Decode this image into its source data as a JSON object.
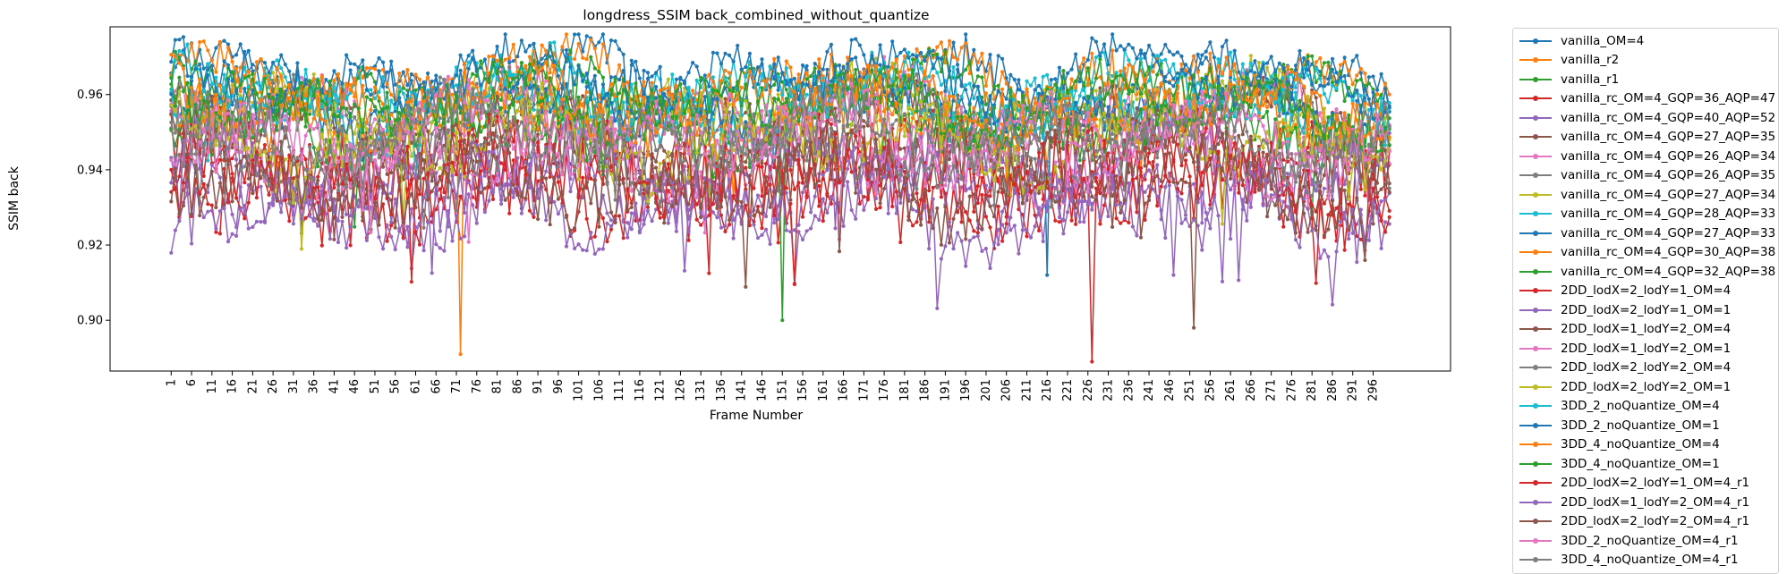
{
  "chart_data": {
    "type": "line",
    "title": "longdress_SSIM back_combined_without_quantize",
    "xlabel": "Frame Number",
    "ylabel": "SSIM back",
    "x_range": [
      1,
      300
    ],
    "ylim": [
      0.8865,
      0.978
    ],
    "y_ticks": [
      0.9,
      0.92,
      0.94,
      0.96
    ],
    "x_ticks": [
      1,
      6,
      11,
      16,
      21,
      26,
      31,
      36,
      41,
      46,
      51,
      56,
      61,
      66,
      71,
      76,
      81,
      86,
      91,
      96,
      101,
      106,
      111,
      116,
      121,
      126,
      131,
      136,
      141,
      146,
      151,
      156,
      161,
      166,
      171,
      176,
      181,
      186,
      191,
      196,
      201,
      206,
      211,
      216,
      221,
      226,
      231,
      236,
      241,
      246,
      251,
      256,
      261,
      266,
      271,
      276,
      281,
      286,
      291,
      296
    ],
    "grid": false,
    "legend_position": "outside-right",
    "series": [
      {
        "name": "vanilla_OM=4",
        "color": "#1f77b4",
        "base": 0.963,
        "amp": 0.01,
        "seed": 1
      },
      {
        "name": "vanilla_r2",
        "color": "#ff7f0e",
        "base": 0.962,
        "amp": 0.01,
        "seed": 2,
        "extremes": [
          [
            72,
            0.891
          ]
        ]
      },
      {
        "name": "vanilla_r1",
        "color": "#2ca02c",
        "base": 0.96,
        "amp": 0.01,
        "seed": 3
      },
      {
        "name": "vanilla_rc_OM=4_GQP=36_AQP=47",
        "color": "#d62728",
        "base": 0.94,
        "amp": 0.018,
        "seed": 4
      },
      {
        "name": "vanilla_rc_OM=4_GQP=40_AQP=52",
        "color": "#9467bd",
        "base": 0.933,
        "amp": 0.014,
        "seed": 5
      },
      {
        "name": "vanilla_rc_OM=4_GQP=27_AQP=35",
        "color": "#8c564b",
        "base": 0.952,
        "amp": 0.014,
        "seed": 6
      },
      {
        "name": "vanilla_rc_OM=4_GQP=26_AQP=34",
        "color": "#e377c2",
        "base": 0.955,
        "amp": 0.012,
        "seed": 7
      },
      {
        "name": "vanilla_rc_OM=4_GQP=26_AQP=35",
        "color": "#7f7f7f",
        "base": 0.953,
        "amp": 0.013,
        "seed": 8
      },
      {
        "name": "vanilla_rc_OM=4_GQP=27_AQP=34",
        "color": "#bcbd22",
        "base": 0.956,
        "amp": 0.012,
        "seed": 9
      },
      {
        "name": "vanilla_rc_OM=4_GQP=28_AQP=33",
        "color": "#17becf",
        "base": 0.958,
        "amp": 0.011,
        "seed": 10
      },
      {
        "name": "vanilla_rc_OM=4_GQP=27_AQP=33",
        "color": "#1f77b4",
        "base": 0.96,
        "amp": 0.011,
        "seed": 11,
        "extremes": [
          [
            216,
            0.912
          ]
        ]
      },
      {
        "name": "vanilla_rc_OM=4_GQP=30_AQP=38",
        "color": "#ff7f0e",
        "base": 0.956,
        "amp": 0.012,
        "seed": 12
      },
      {
        "name": "vanilla_rc_OM=4_GQP=32_AQP=38",
        "color": "#2ca02c",
        "base": 0.953,
        "amp": 0.013,
        "seed": 13,
        "extremes": [
          [
            151,
            0.9
          ]
        ]
      },
      {
        "name": "2DD_lodX=2_lodY=1_OM=4",
        "color": "#d62728",
        "base": 0.938,
        "amp": 0.019,
        "seed": 14,
        "extremes": [
          [
            227,
            0.889
          ]
        ]
      },
      {
        "name": "2DD_lodX=2_lodY=1_OM=1",
        "color": "#9467bd",
        "base": 0.94,
        "amp": 0.016,
        "seed": 15
      },
      {
        "name": "2DD_lodX=1_lodY=2_OM=4",
        "color": "#8c564b",
        "base": 0.942,
        "amp": 0.017,
        "seed": 16
      },
      {
        "name": "2DD_lodX=1_lodY=2_OM=1",
        "color": "#e377c2",
        "base": 0.944,
        "amp": 0.015,
        "seed": 17
      },
      {
        "name": "2DD_lodX=2_lodY=2_OM=4",
        "color": "#7f7f7f",
        "base": 0.946,
        "amp": 0.015,
        "seed": 18
      },
      {
        "name": "2DD_lodX=2_lodY=2_OM=1",
        "color": "#bcbd22",
        "base": 0.948,
        "amp": 0.014,
        "seed": 19
      },
      {
        "name": "3DD_2_noQuantize_OM=4",
        "color": "#17becf",
        "base": 0.961,
        "amp": 0.01,
        "seed": 20
      },
      {
        "name": "3DD_2_noQuantize_OM=1",
        "color": "#1f77b4",
        "base": 0.964,
        "amp": 0.01,
        "seed": 21
      },
      {
        "name": "3DD_4_noQuantize_OM=4",
        "color": "#ff7f0e",
        "base": 0.959,
        "amp": 0.011,
        "seed": 22
      },
      {
        "name": "3DD_4_noQuantize_OM=1",
        "color": "#2ca02c",
        "base": 0.957,
        "amp": 0.011,
        "seed": 23
      },
      {
        "name": "2DD_lodX=2_lodY=1_OM=4_r1",
        "color": "#d62728",
        "base": 0.936,
        "amp": 0.018,
        "seed": 24
      },
      {
        "name": "2DD_lodX=1_lodY=2_OM=4_r1",
        "color": "#9467bd",
        "base": 0.931,
        "amp": 0.015,
        "seed": 25
      },
      {
        "name": "2DD_lodX=2_lodY=2_OM=4_r1",
        "color": "#8c564b",
        "base": 0.937,
        "amp": 0.017,
        "seed": 26,
        "extremes": [
          [
            252,
            0.898
          ]
        ]
      },
      {
        "name": "3DD_2_noQuantize_OM=4_r1",
        "color": "#e377c2",
        "base": 0.95,
        "amp": 0.013,
        "seed": 27
      },
      {
        "name": "3DD_4_noQuantize_OM=4_r1",
        "color": "#7f7f7f",
        "base": 0.949,
        "amp": 0.013,
        "seed": 28
      }
    ]
  }
}
